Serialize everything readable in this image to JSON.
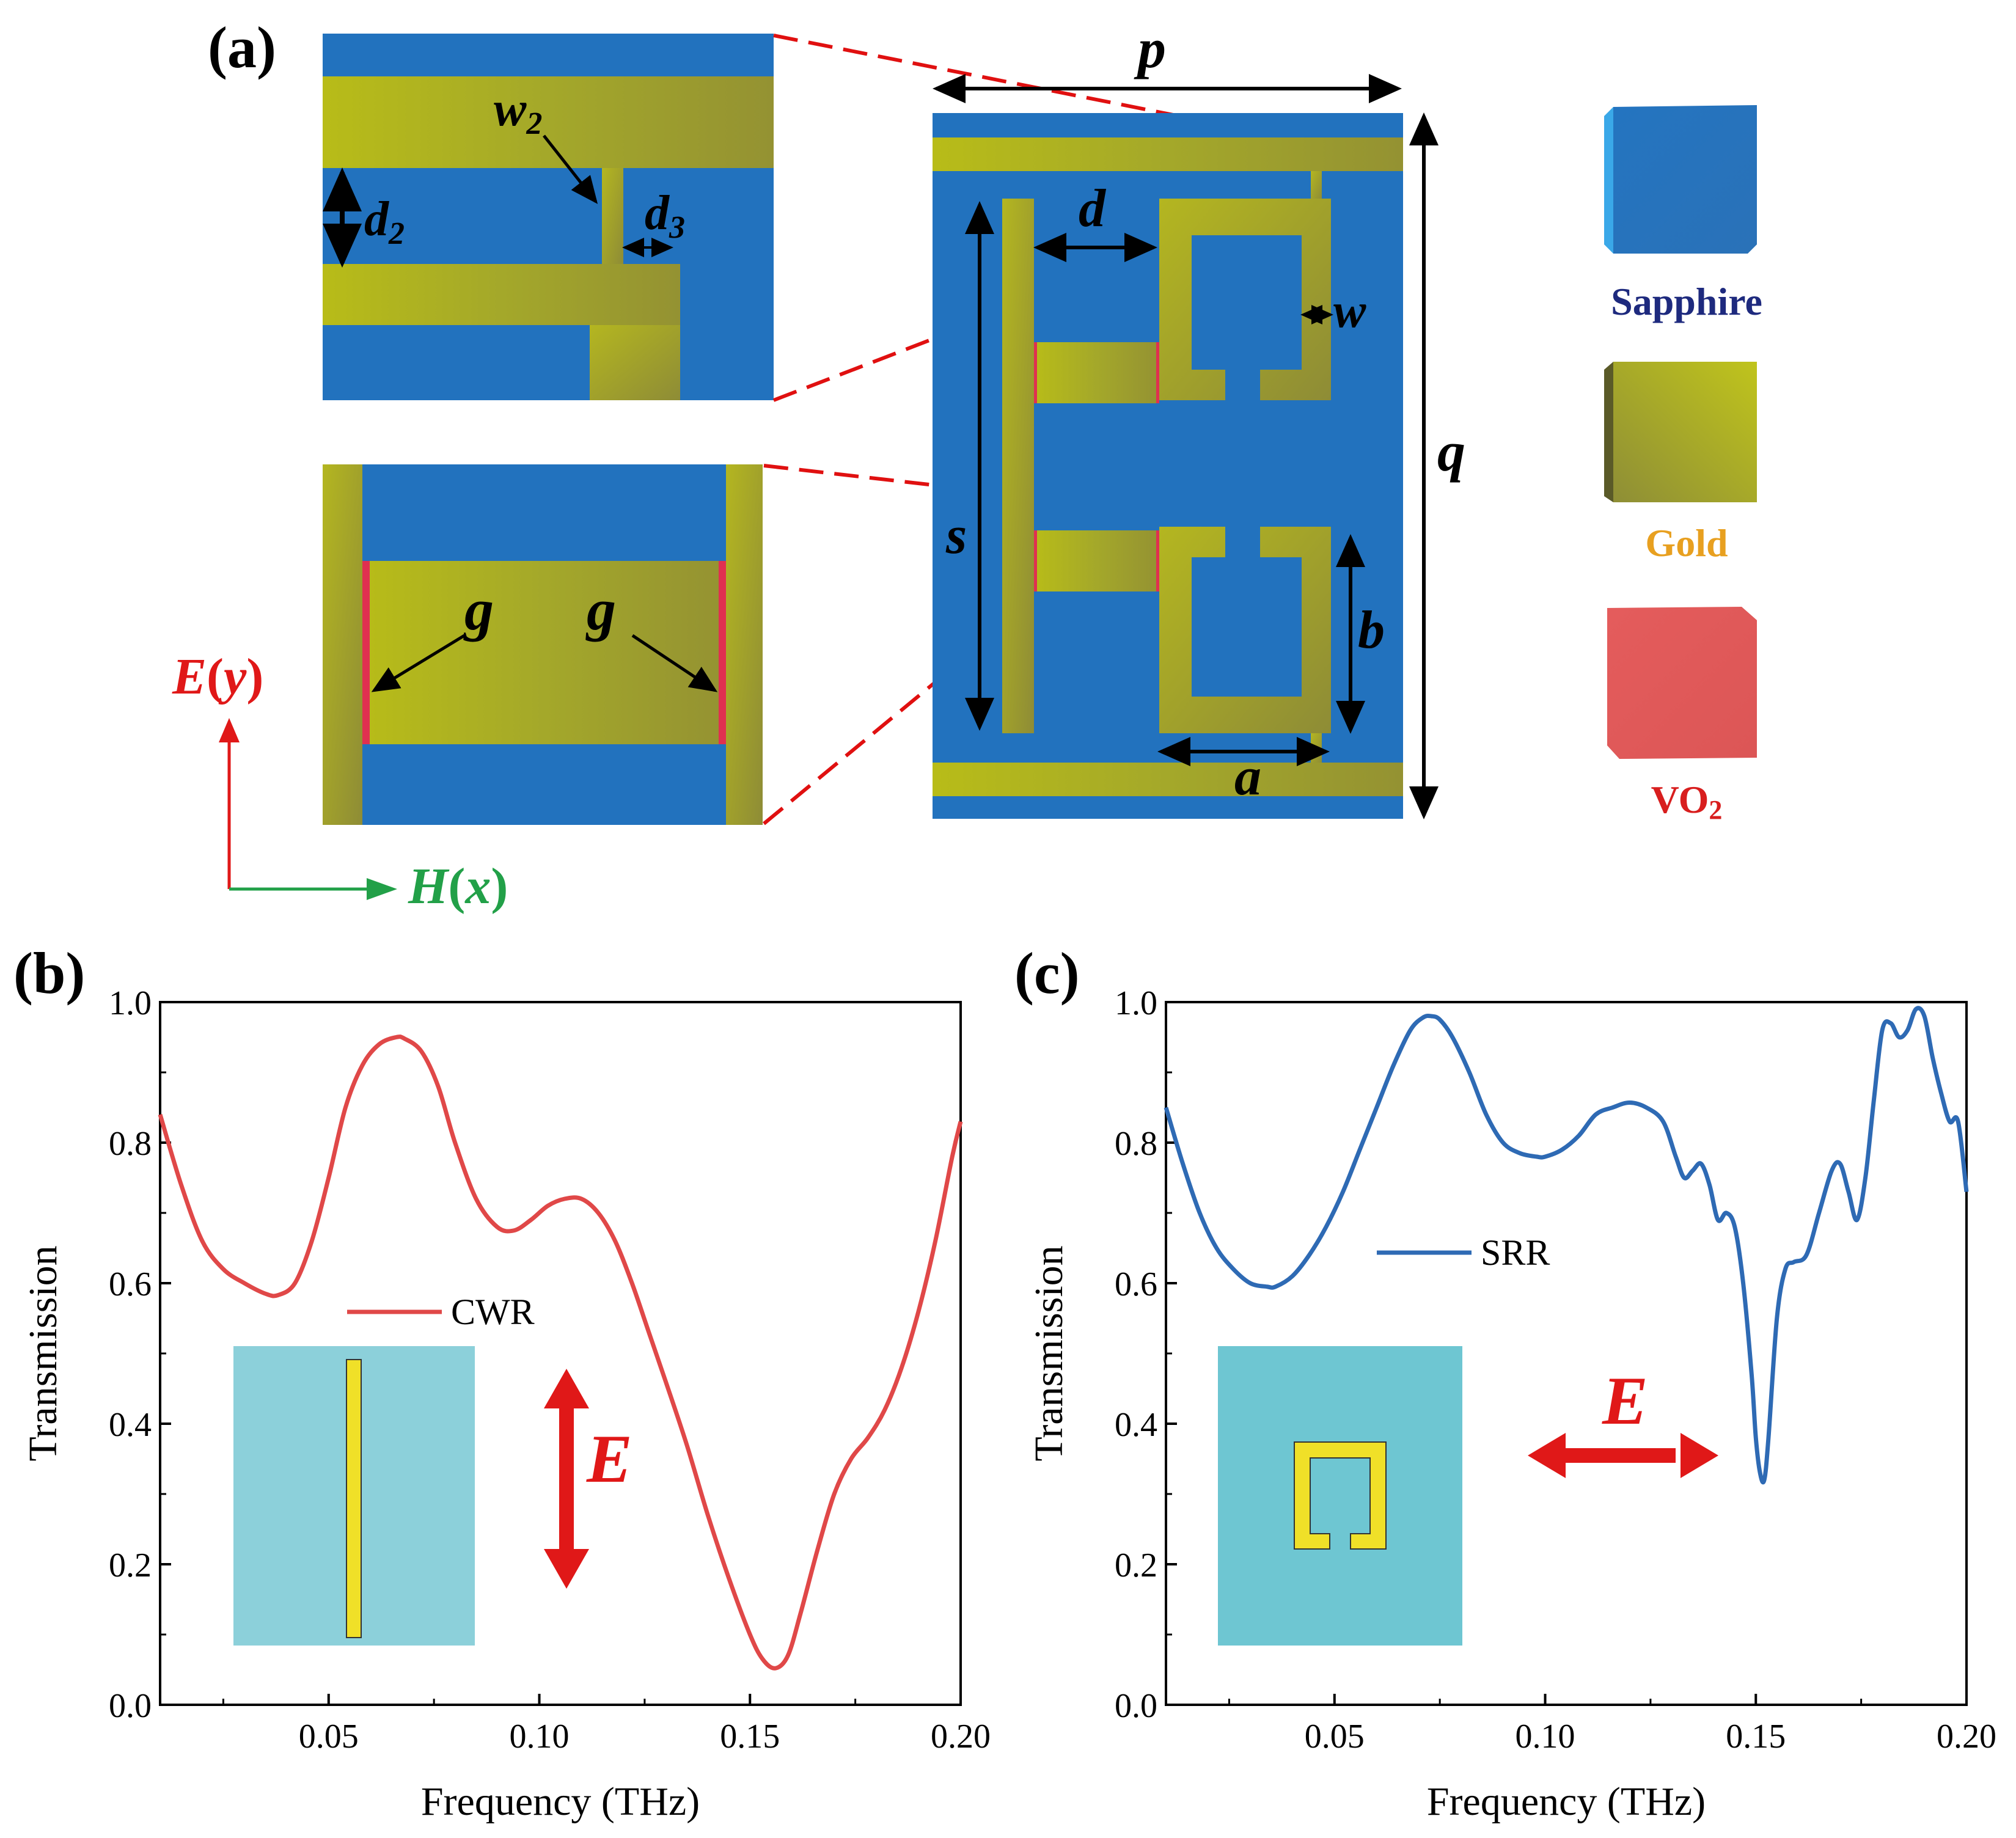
{
  "panel_a": {
    "label": "(a)",
    "dims": {
      "p": "p",
      "q": "q",
      "s": "s",
      "d": "d",
      "w": "w",
      "a": "a",
      "b": "b",
      "g": "g",
      "w2": "w",
      "w2_sub": "2",
      "d2": "d",
      "d2_sub": "2",
      "d3": "d",
      "d3_sub": "3"
    },
    "axes": {
      "E": "E",
      "H": "H",
      "E_dir": "y",
      "H_dir": "x"
    },
    "legend": [
      {
        "key": "sapphire",
        "label": "Sapphire",
        "color": "#2272be",
        "text_color": "#1e2a7e"
      },
      {
        "key": "gold",
        "label": "Gold",
        "color": "#b4b41e",
        "text_color": "#e8a020"
      },
      {
        "key": "vo2",
        "label": "VO",
        "sub": "2",
        "color": "#e25a5a",
        "text_color": "#d81e1e"
      }
    ],
    "colors": {
      "sapphire": "#2272be",
      "gold": "#a8a728",
      "vo2": "#e03050",
      "dash": "#e01010"
    }
  },
  "chart_data": [
    {
      "type": "line",
      "panel_label": "(b)",
      "xlabel": "Frequency (THz)",
      "ylabel": "Transmission",
      "xlim": [
        0.01,
        0.2
      ],
      "ylim": [
        0.0,
        1.0
      ],
      "xticks": [
        0.05,
        0.1,
        0.15,
        0.2
      ],
      "xtick_labels": [
        "0.05",
        "0.10",
        "0.15",
        "0.20"
      ],
      "yticks": [
        0.0,
        0.2,
        0.4,
        0.6,
        0.8,
        1.0
      ],
      "ytick_labels": [
        "0.0",
        "0.2",
        "0.4",
        "0.6",
        "0.8",
        "1.0"
      ],
      "series": [
        {
          "name": "CWR",
          "color": "#e04848",
          "x": [
            0.01,
            0.015,
            0.02,
            0.025,
            0.03,
            0.035,
            0.038,
            0.042,
            0.046,
            0.05,
            0.054,
            0.058,
            0.062,
            0.066,
            0.068,
            0.072,
            0.076,
            0.08,
            0.085,
            0.09,
            0.094,
            0.098,
            0.102,
            0.106,
            0.11,
            0.114,
            0.118,
            0.122,
            0.126,
            0.13,
            0.135,
            0.14,
            0.145,
            0.15,
            0.153,
            0.156,
            0.159,
            0.162,
            0.166,
            0.17,
            0.174,
            0.178,
            0.182,
            0.186,
            0.19,
            0.194,
            0.198,
            0.2
          ],
          "y": [
            0.84,
            0.74,
            0.66,
            0.62,
            0.6,
            0.585,
            0.583,
            0.6,
            0.66,
            0.75,
            0.85,
            0.91,
            0.94,
            0.95,
            0.948,
            0.93,
            0.88,
            0.8,
            0.72,
            0.68,
            0.675,
            0.69,
            0.71,
            0.72,
            0.72,
            0.7,
            0.66,
            0.6,
            0.53,
            0.46,
            0.37,
            0.27,
            0.18,
            0.1,
            0.065,
            0.052,
            0.07,
            0.13,
            0.22,
            0.3,
            0.35,
            0.38,
            0.42,
            0.48,
            0.56,
            0.66,
            0.78,
            0.83
          ]
        }
      ],
      "legend": {
        "label": "CWR",
        "position": "center-left"
      },
      "inset": {
        "type": "cut-wire",
        "bg": "#8cd0da",
        "bar": "#f0e028"
      },
      "field": {
        "label": "E",
        "orientation": "vertical",
        "color": "#e01818"
      }
    },
    {
      "type": "line",
      "panel_label": "(c)",
      "xlabel": "Frequency (THz)",
      "ylabel": "Transmission",
      "xlim": [
        0.01,
        0.2
      ],
      "ylim": [
        0.0,
        1.0
      ],
      "xticks": [
        0.05,
        0.1,
        0.15,
        0.2
      ],
      "xtick_labels": [
        "0.05",
        "0.10",
        "0.15",
        "0.20"
      ],
      "yticks": [
        0.0,
        0.2,
        0.4,
        0.6,
        0.8,
        1.0
      ],
      "ytick_labels": [
        "0.0",
        "0.2",
        "0.4",
        "0.6",
        "0.8",
        "1.0"
      ],
      "series": [
        {
          "name": "SRR",
          "color": "#2e6ab4",
          "x": [
            0.01,
            0.014,
            0.018,
            0.022,
            0.026,
            0.03,
            0.034,
            0.036,
            0.04,
            0.044,
            0.048,
            0.052,
            0.056,
            0.06,
            0.064,
            0.068,
            0.071,
            0.073,
            0.075,
            0.078,
            0.082,
            0.086,
            0.09,
            0.094,
            0.098,
            0.1,
            0.104,
            0.108,
            0.112,
            0.116,
            0.12,
            0.124,
            0.128,
            0.131,
            0.133,
            0.135,
            0.137,
            0.139,
            0.141,
            0.143,
            0.145,
            0.147,
            0.149,
            0.15,
            0.151,
            0.152,
            0.153,
            0.155,
            0.157,
            0.159,
            0.162,
            0.165,
            0.168,
            0.17,
            0.172,
            0.174,
            0.176,
            0.178,
            0.18,
            0.182,
            0.184,
            0.186,
            0.188,
            0.19,
            0.192,
            0.194,
            0.196,
            0.198,
            0.2
          ],
          "y": [
            0.85,
            0.77,
            0.7,
            0.65,
            0.62,
            0.6,
            0.595,
            0.595,
            0.61,
            0.64,
            0.68,
            0.73,
            0.79,
            0.85,
            0.91,
            0.96,
            0.978,
            0.98,
            0.975,
            0.95,
            0.9,
            0.84,
            0.8,
            0.785,
            0.78,
            0.78,
            0.79,
            0.81,
            0.84,
            0.85,
            0.857,
            0.85,
            0.83,
            0.78,
            0.75,
            0.76,
            0.77,
            0.74,
            0.69,
            0.7,
            0.68,
            0.6,
            0.47,
            0.38,
            0.33,
            0.32,
            0.38,
            0.55,
            0.62,
            0.63,
            0.64,
            0.7,
            0.76,
            0.77,
            0.73,
            0.69,
            0.75,
            0.86,
            0.96,
            0.97,
            0.95,
            0.96,
            0.99,
            0.98,
            0.92,
            0.87,
            0.83,
            0.83,
            0.73
          ]
        }
      ],
      "legend": {
        "label": "SRR",
        "position": "center-left"
      },
      "inset": {
        "type": "split-ring",
        "bg": "#6ec6d2",
        "ring": "#f0e028"
      },
      "field": {
        "label": "E",
        "orientation": "horizontal",
        "color": "#e01818"
      }
    }
  ]
}
